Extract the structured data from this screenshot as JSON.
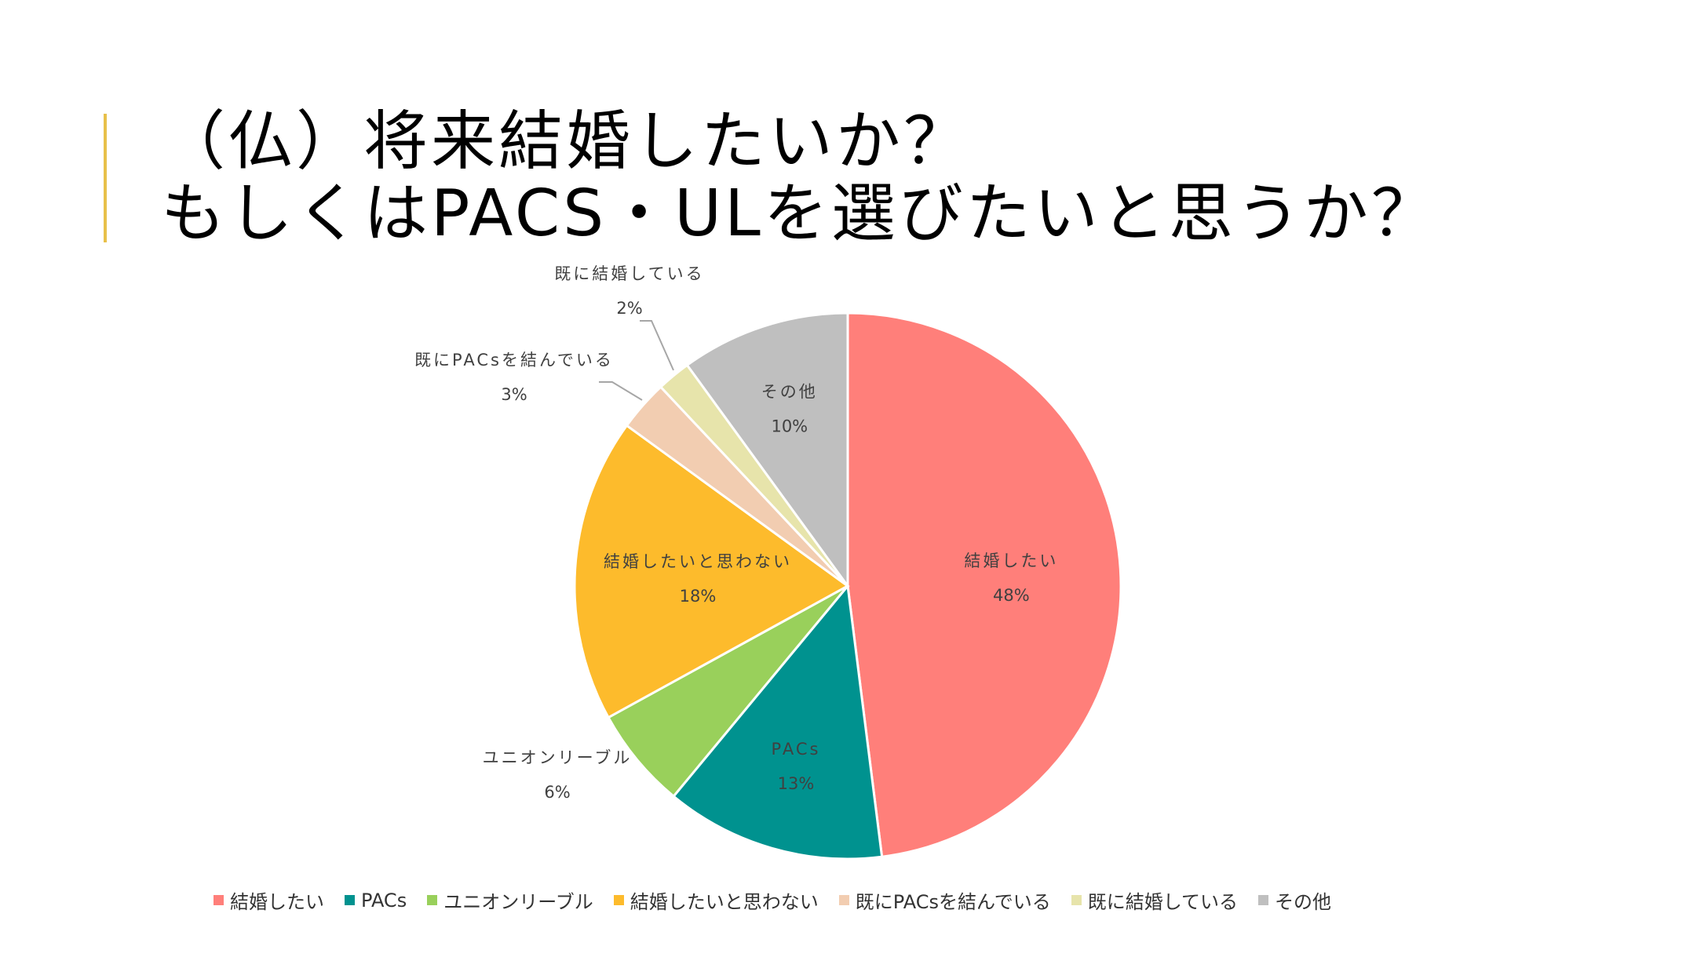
{
  "slide": {
    "title_line1": "（仏）将来結婚したいか？",
    "title_line2": "もしくはPACS・ULを選びたいと思うか？",
    "accent_color": "#E8C04A"
  },
  "chart_data": {
    "type": "pie",
    "categories": [
      "結婚したい",
      "PACs",
      "ユニオンリーブル",
      "結婚したいと思わない",
      "既にPACsを結んでいる",
      "既に結婚している",
      "その他"
    ],
    "values": [
      48,
      13,
      6,
      18,
      3,
      2,
      10
    ],
    "value_labels": [
      "48%",
      "13%",
      "6%",
      "18%",
      "3%",
      "2%",
      "10%"
    ],
    "colors": [
      "#FF7F7A",
      "#00928F",
      "#99D05B",
      "#FDBB2C",
      "#F2CDB1",
      "#E7E4AB",
      "#BFBFBF"
    ],
    "legend_position": "bottom"
  }
}
